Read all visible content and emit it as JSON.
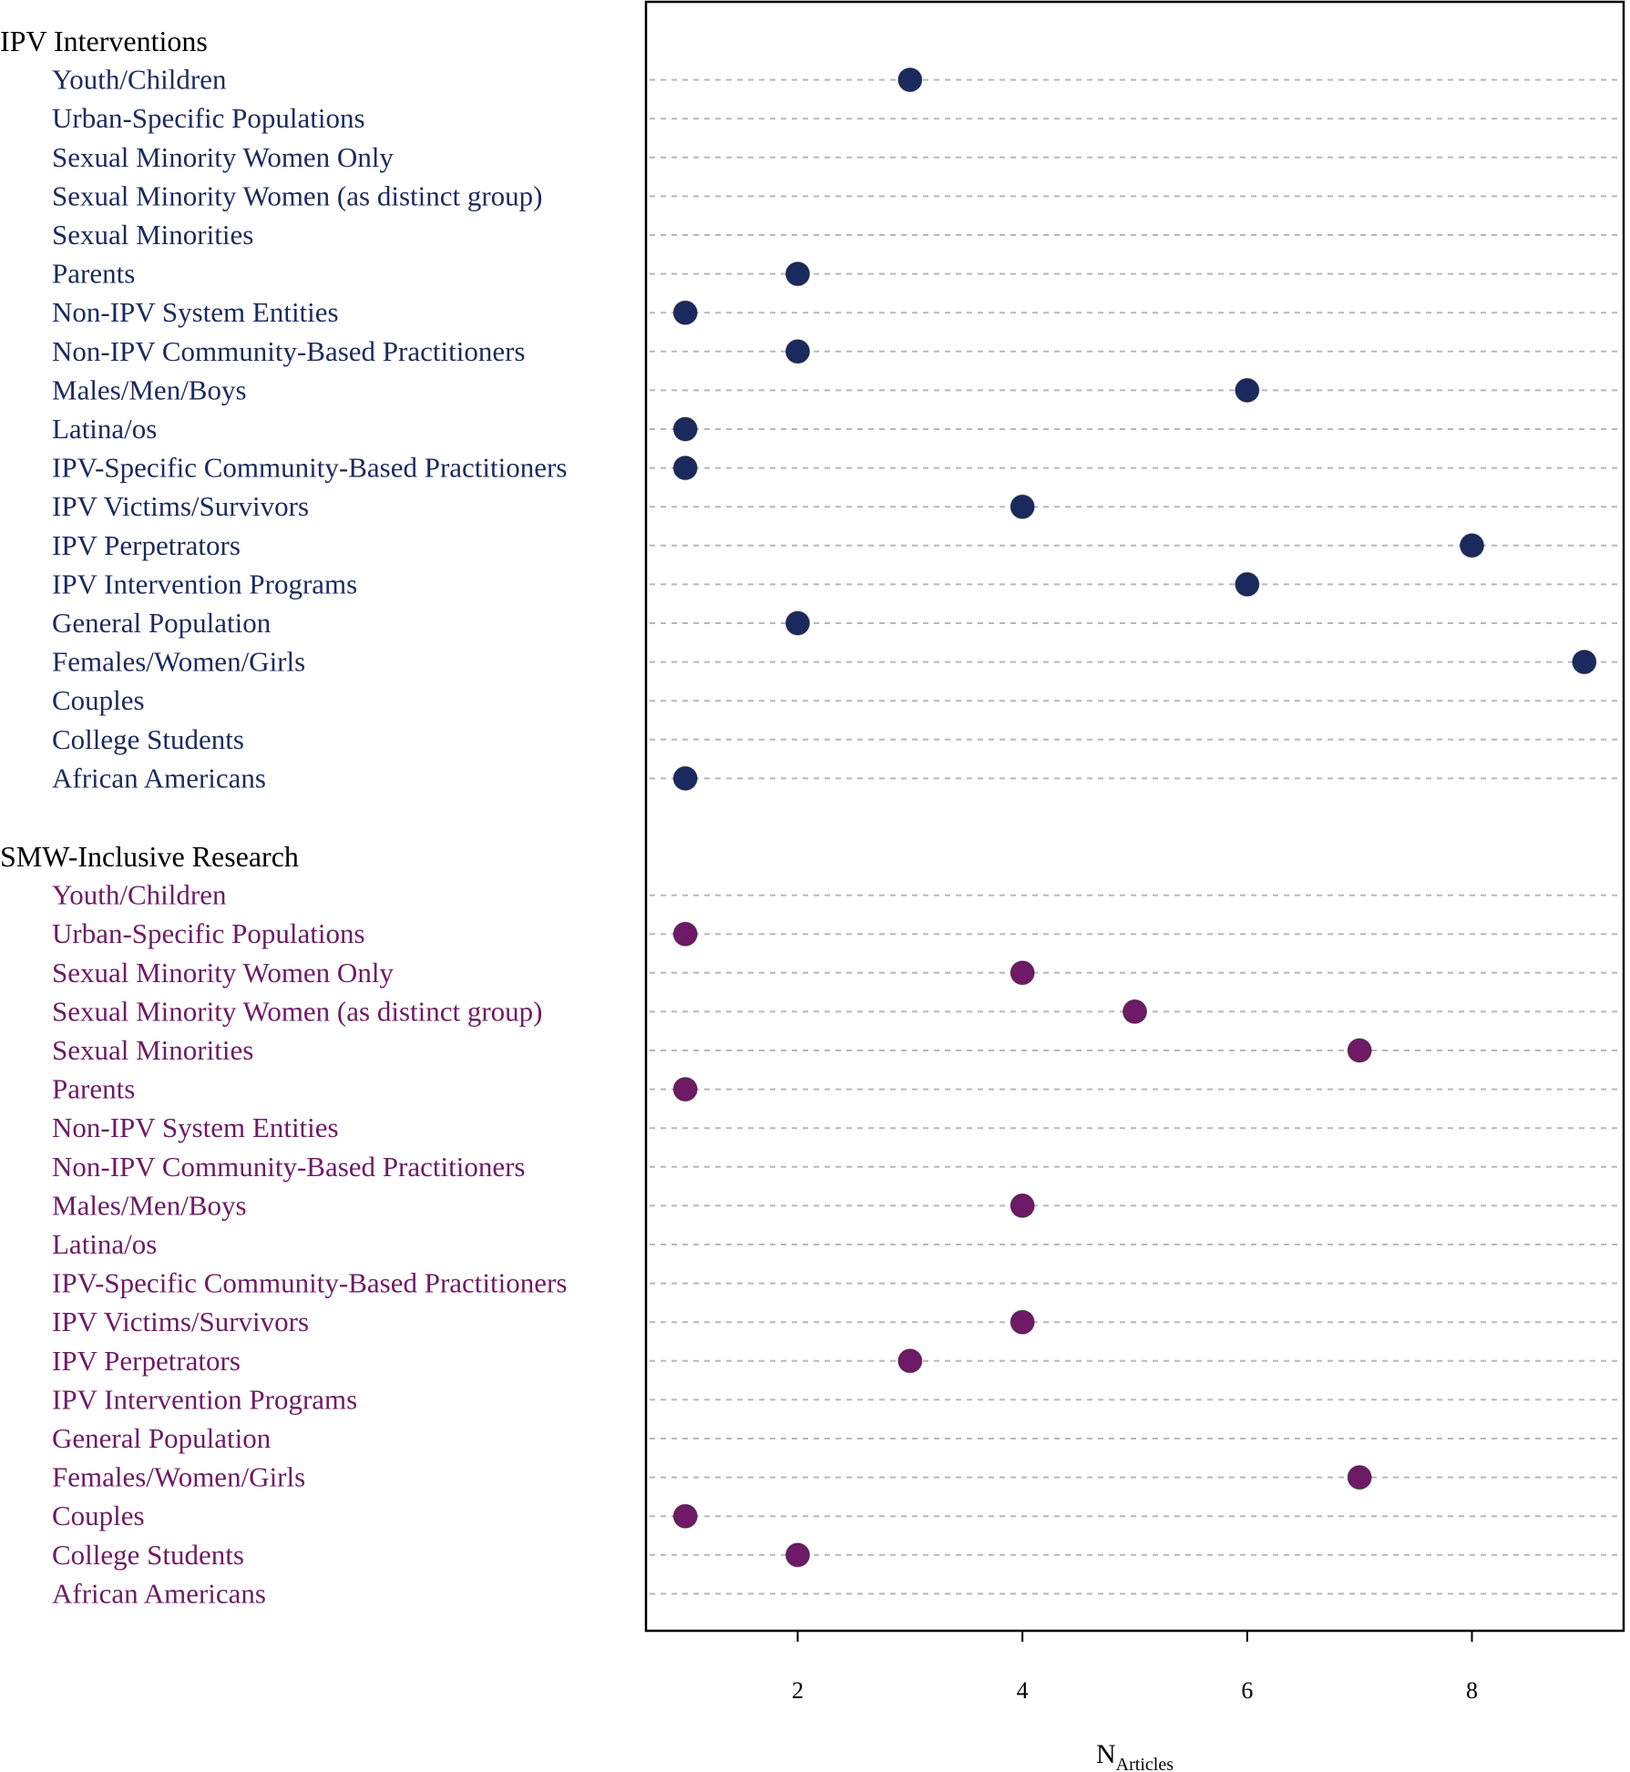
{
  "colors": {
    "ipv": "#1b2a5e",
    "smw": "#6e1a66",
    "grid": "#b8b8b8",
    "frame": "#000000"
  },
  "chart_data": {
    "type": "scatter",
    "subtype": "dot-plot",
    "xlabel": "N",
    "xlabel_subscript": "Articles",
    "xlim": [
      0.65,
      9.35
    ],
    "xticks": [
      2,
      4,
      6,
      8
    ],
    "grid": "horizontal dashed",
    "categories": [
      "Youth/Children",
      "Urban-Specific Populations",
      "Sexual Minority Women Only",
      "Sexual Minority Women (as distinct group)",
      "Sexual Minorities",
      "Parents",
      "Non-IPV System Entities",
      "Non-IPV Community-Based Practitioners",
      "Males/Men/Boys",
      "Latina/os",
      "IPV-Specific Community-Based Practitioners",
      "IPV Victims/Survivors",
      "IPV Perpetrators",
      "IPV Intervention Programs",
      "General Population",
      "Females/Women/Girls",
      "Couples",
      "College Students",
      "African Americans"
    ],
    "groups": [
      {
        "name": "IPV Interventions",
        "color": "#1b2a5e",
        "values": [
          3,
          null,
          null,
          null,
          null,
          2,
          1,
          2,
          6,
          1,
          1,
          4,
          8,
          6,
          2,
          9,
          null,
          null,
          1
        ]
      },
      {
        "name": "SMW-Inclusive Research",
        "color": "#6e1a66",
        "values": [
          null,
          1,
          4,
          5,
          7,
          1,
          null,
          null,
          4,
          null,
          null,
          4,
          3,
          null,
          null,
          7,
          1,
          2,
          null
        ]
      }
    ]
  }
}
